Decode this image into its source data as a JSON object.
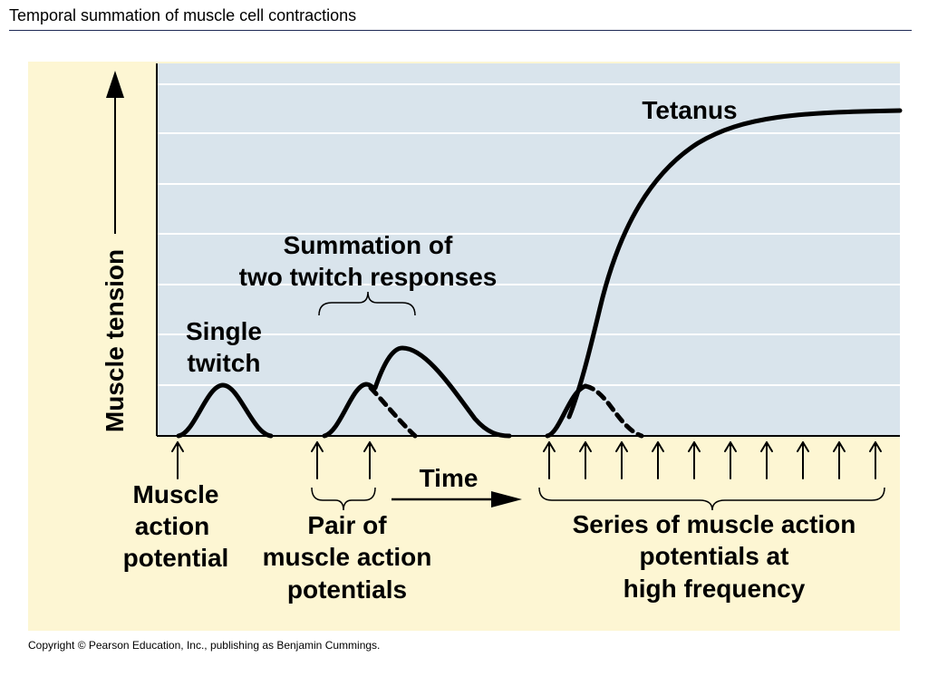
{
  "slide": {
    "title": "Temporal summation of muscle cell contractions",
    "copyright": "Copyright © Pearson Education, Inc., publishing as Benjamin Cummings."
  },
  "figure": {
    "y_axis_label": "Muscle tension",
    "x_axis_label": "Time",
    "labels": {
      "tetanus": "Tetanus",
      "summation_line1": "Summation of",
      "summation_line2": "two twitch responses",
      "single_line1": "Single",
      "single_line2": "twitch",
      "map_line1": "Muscle",
      "map_line2": "action",
      "map_line3": "potential",
      "pair_line1": "Pair of",
      "pair_line2": "muscle action",
      "pair_line3": "potentials",
      "series_line1": "Series of muscle action",
      "series_line2": "potentials at",
      "series_line3": "high frequency"
    },
    "colors": {
      "background": "#fdf6d3",
      "plot_area": "#d9e4ec",
      "gridline": "#ffffff",
      "curve": "#000000"
    }
  }
}
